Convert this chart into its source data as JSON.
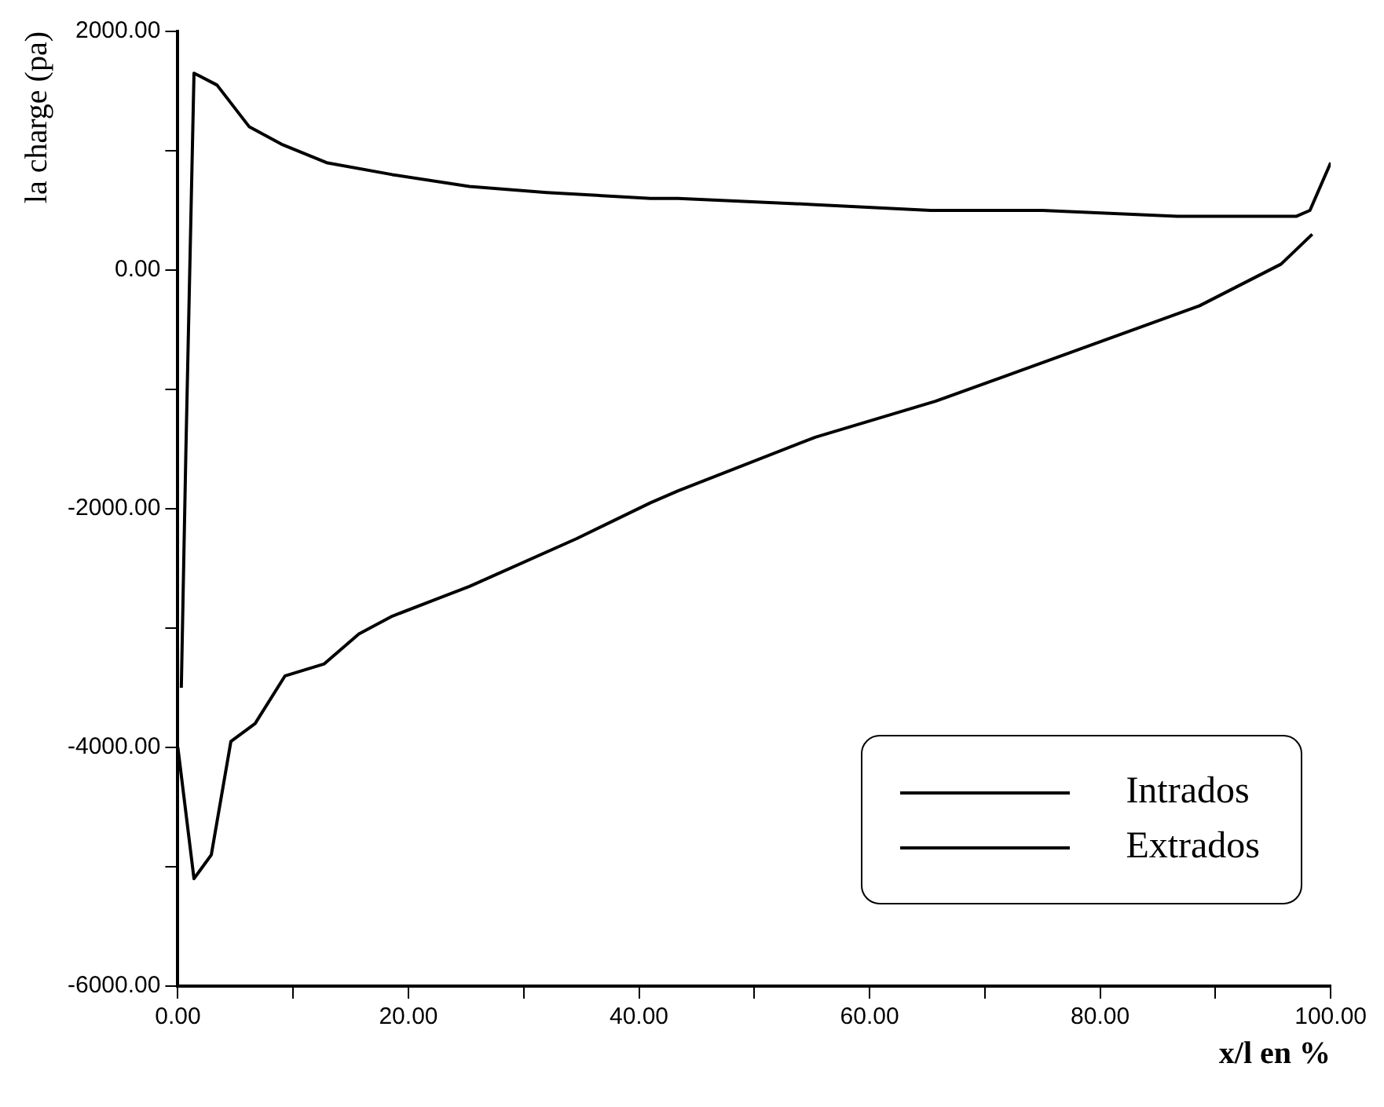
{
  "chart_data": {
    "type": "line",
    "xlabel": "x/l en %",
    "ylabel": "la charge (pa)",
    "xlim": [
      0,
      100
    ],
    "ylim": [
      -6000,
      2000
    ],
    "xticks": [
      {
        "value": 0,
        "label": "0.00"
      },
      {
        "value": 10,
        "label": null
      },
      {
        "value": 20,
        "label": "20.00"
      },
      {
        "value": 30,
        "label": null
      },
      {
        "value": 40,
        "label": "40.00"
      },
      {
        "value": 50,
        "label": null
      },
      {
        "value": 60,
        "label": "60.00"
      },
      {
        "value": 70,
        "label": null
      },
      {
        "value": 80,
        "label": "80.00"
      },
      {
        "value": 90,
        "label": null
      },
      {
        "value": 100,
        "label": "100.00"
      }
    ],
    "yticks": [
      {
        "value": -6000,
        "label": "-6000.00"
      },
      {
        "value": -5000,
        "label": null
      },
      {
        "value": -4000,
        "label": "-4000.00"
      },
      {
        "value": -3000,
        "label": null
      },
      {
        "value": -2000,
        "label": "-2000.00"
      },
      {
        "value": -1000,
        "label": null
      },
      {
        "value": 0,
        "label": "0.00"
      },
      {
        "value": 1000,
        "label": null
      },
      {
        "value": 2000,
        "label": "2000.00"
      }
    ],
    "grid": false,
    "legend": "bottom right",
    "marker": "none",
    "line_style": "solid",
    "series": [
      {
        "name": "Intrados",
        "color": "#000000",
        "x": [
          0.3,
          0.7,
          1.4,
          3.4,
          6.2,
          9.1,
          12.9,
          18.6,
          25.3,
          32,
          41,
          43.4,
          55,
          65.3,
          75,
          86.7,
          94,
          97,
          98.2,
          100
        ],
        "values": [
          -3500,
          -1500,
          1650,
          1550,
          1200,
          1050,
          900,
          800,
          700,
          650,
          600,
          600,
          550,
          500,
          500,
          450,
          450,
          450,
          500,
          900
        ]
      },
      {
        "name": "Extrados",
        "color": "#000000",
        "x": [
          0,
          1.4,
          2.9,
          4.6,
          6.7,
          9.3,
          12.7,
          15.7,
          18.6,
          25.3,
          34.6,
          41,
          43.4,
          55.3,
          65.7,
          74.3,
          88.6,
          95.7,
          98.4
        ],
        "values": [
          -4000,
          -5100,
          -4900,
          -3950,
          -3800,
          -3400,
          -3300,
          -3050,
          -2900,
          -2650,
          -2250,
          -1950,
          -1850,
          -1400,
          -1100,
          -800,
          -300,
          50,
          300
        ]
      }
    ]
  }
}
